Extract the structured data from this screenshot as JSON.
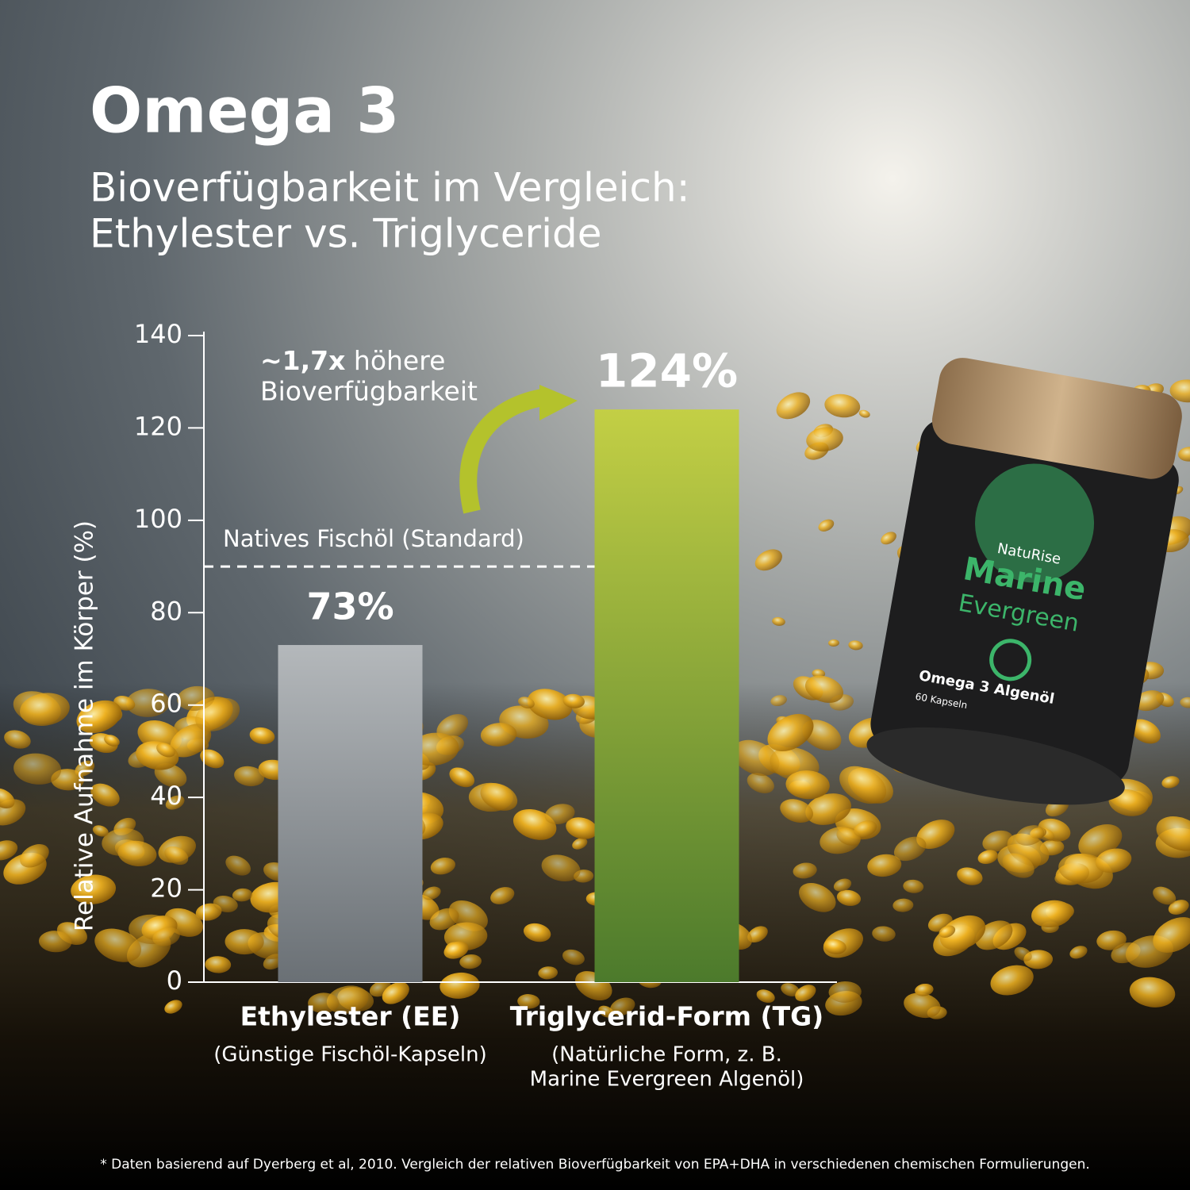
{
  "chart_data": {
    "type": "bar",
    "title": "Omega 3",
    "subtitle": [
      "Bioverfügbarkeit im Vergleich:",
      "Ethylester vs. Triglyceride"
    ],
    "y_label": "Relative Aufnahme im Körper (%)",
    "categories": [
      "Ethylester (EE)",
      "Triglycerid-Form (TG)"
    ],
    "category_notes": [
      [
        "(Günstige Fischöl-Kapseln)"
      ],
      [
        "(Natürliche Form, z. B.",
        "Marine Evergreen Algenöl)"
      ]
    ],
    "values": [
      73,
      124
    ],
    "value_labels": [
      "73%",
      "124%"
    ],
    "colors": [
      [
        "#b4b8bb",
        "#6a7075"
      ],
      [
        "#c3cf45",
        "#4c7a2c"
      ]
    ],
    "ylim": [
      0,
      140
    ],
    "yticks": [
      0,
      20,
      40,
      60,
      80,
      100,
      120,
      140
    ],
    "reference_line": {
      "value": 90,
      "label": "Natives Fischöl (Standard)"
    },
    "annotation": {
      "emphasis": "~1,7x",
      "lines": [
        "höhere",
        "Bioverfügbarkeit"
      ]
    },
    "footnote": "* Daten basierend auf Dyerberg et al, 2010. Vergleich der relativen Bioverfügbarkeit von EPA+DHA in verschiedenen chemischen Formulierungen."
  },
  "product": {
    "brand": "NatuRise",
    "name": [
      "Marine",
      "Evergreen"
    ],
    "content": "Omega 3 Algenöl",
    "count": "60 Kapseln"
  }
}
